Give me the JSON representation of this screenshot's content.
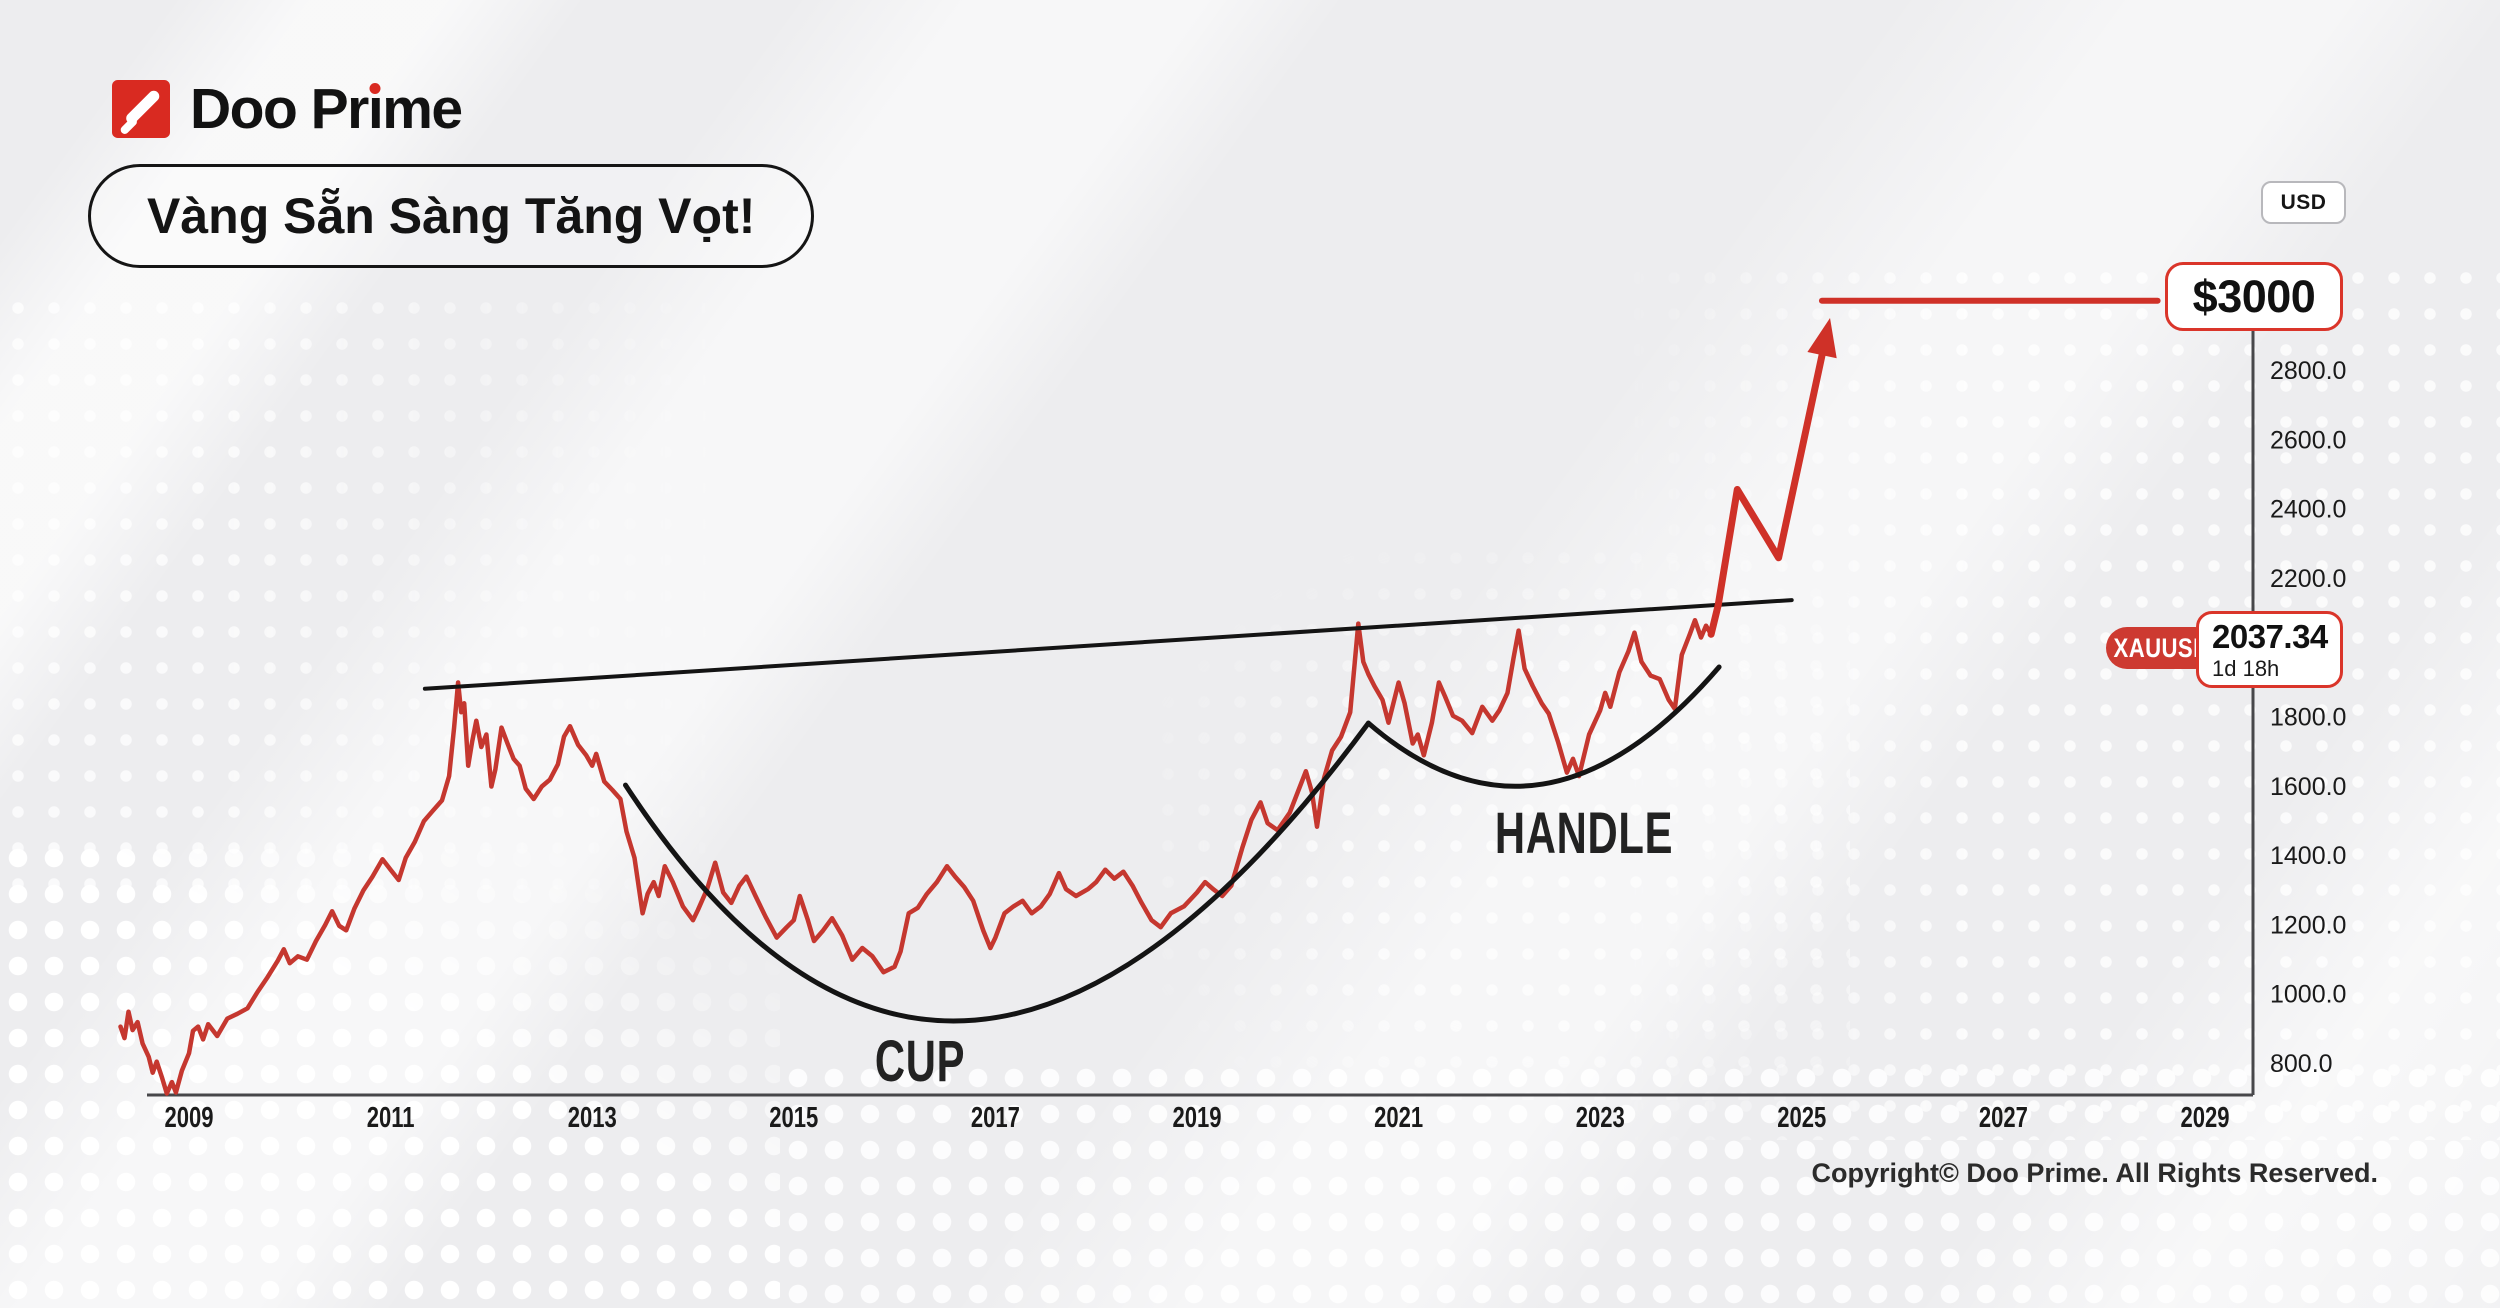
{
  "brand": {
    "logo_pre": "Doo Pr",
    "logo_i": "ı",
    "logo_post": "me"
  },
  "header": {
    "headline": "Vàng Sẵn Sàng Tăng Vọt!"
  },
  "currency_badge": {
    "label": "USD"
  },
  "target_badge": {
    "label": "$3000"
  },
  "price_tag": {
    "symbol": "XAUUSD",
    "price": "2037.34",
    "timeframe": "1d 18h"
  },
  "pattern_labels": {
    "cup": "CUP",
    "handle": "HANDLE"
  },
  "footer": {
    "copyright": "Copyright© Doo Prime. All Rights Reserved."
  },
  "colors": {
    "brand_red": "#d92a21",
    "line_red": "#c5372f",
    "projection_red": "#cf3128",
    "pill_red": "#cd3a31",
    "annotation_black": "#141414",
    "axis_gray": "#47474a"
  },
  "chart_data": {
    "type": "line",
    "title": "XAUUSD price history with cup-and-handle pattern and $3000 projection",
    "x_axis": {
      "ticks": [
        2009,
        2011,
        2013,
        2015,
        2017,
        2019,
        2021,
        2023,
        2025,
        2027,
        2029
      ],
      "range": [
        2008.1,
        2029.6
      ]
    },
    "y_axis": {
      "tick_values": [
        2800,
        2600,
        2400,
        2200,
        1800,
        1600,
        1400,
        1200,
        1000,
        800
      ],
      "tick_format": "one_decimal",
      "range": [
        700,
        3100
      ]
    },
    "last_price": 2037.34,
    "series": [
      {
        "name": "XAUUSD",
        "points": [
          [
            2008.32,
            905
          ],
          [
            2008.36,
            872
          ],
          [
            2008.4,
            948
          ],
          [
            2008.44,
            895
          ],
          [
            2008.49,
            918
          ],
          [
            2008.54,
            856
          ],
          [
            2008.6,
            818
          ],
          [
            2008.64,
            772
          ],
          [
            2008.68,
            804
          ],
          [
            2008.73,
            760
          ],
          [
            2008.78,
            712
          ],
          [
            2008.83,
            745
          ],
          [
            2008.87,
            715
          ],
          [
            2008.93,
            778
          ],
          [
            2009.0,
            828
          ],
          [
            2009.04,
            893
          ],
          [
            2009.09,
            905
          ],
          [
            2009.14,
            868
          ],
          [
            2009.19,
            912
          ],
          [
            2009.28,
            878
          ],
          [
            2009.38,
            928
          ],
          [
            2009.48,
            942
          ],
          [
            2009.58,
            958
          ],
          [
            2009.68,
            1005
          ],
          [
            2009.78,
            1048
          ],
          [
            2009.88,
            1095
          ],
          [
            2009.94,
            1128
          ],
          [
            2010.0,
            1088
          ],
          [
            2010.08,
            1108
          ],
          [
            2010.17,
            1098
          ],
          [
            2010.26,
            1152
          ],
          [
            2010.35,
            1198
          ],
          [
            2010.42,
            1238
          ],
          [
            2010.49,
            1196
          ],
          [
            2010.56,
            1183
          ],
          [
            2010.64,
            1245
          ],
          [
            2010.73,
            1298
          ],
          [
            2010.82,
            1338
          ],
          [
            2010.92,
            1388
          ],
          [
            2011.0,
            1358
          ],
          [
            2011.08,
            1328
          ],
          [
            2011.15,
            1392
          ],
          [
            2011.24,
            1438
          ],
          [
            2011.33,
            1498
          ],
          [
            2011.42,
            1528
          ],
          [
            2011.51,
            1558
          ],
          [
            2011.58,
            1628
          ],
          [
            2011.63,
            1768
          ],
          [
            2011.67,
            1898
          ],
          [
            2011.7,
            1812
          ],
          [
            2011.73,
            1838
          ],
          [
            2011.77,
            1658
          ],
          [
            2011.81,
            1728
          ],
          [
            2011.85,
            1788
          ],
          [
            2011.9,
            1712
          ],
          [
            2011.95,
            1748
          ],
          [
            2012.0,
            1598
          ],
          [
            2012.04,
            1648
          ],
          [
            2012.1,
            1768
          ],
          [
            2012.16,
            1722
          ],
          [
            2012.22,
            1678
          ],
          [
            2012.28,
            1658
          ],
          [
            2012.34,
            1592
          ],
          [
            2012.42,
            1562
          ],
          [
            2012.5,
            1598
          ],
          [
            2012.58,
            1618
          ],
          [
            2012.66,
            1662
          ],
          [
            2012.72,
            1742
          ],
          [
            2012.78,
            1772
          ],
          [
            2012.86,
            1718
          ],
          [
            2012.94,
            1688
          ],
          [
            2013.0,
            1658
          ],
          [
            2013.04,
            1692
          ],
          [
            2013.12,
            1612
          ],
          [
            2013.2,
            1588
          ],
          [
            2013.28,
            1562
          ],
          [
            2013.34,
            1468
          ],
          [
            2013.42,
            1392
          ],
          [
            2013.5,
            1232
          ],
          [
            2013.55,
            1288
          ],
          [
            2013.61,
            1322
          ],
          [
            2013.66,
            1282
          ],
          [
            2013.72,
            1368
          ],
          [
            2013.8,
            1322
          ],
          [
            2013.9,
            1252
          ],
          [
            2014.0,
            1212
          ],
          [
            2014.05,
            1242
          ],
          [
            2014.14,
            1302
          ],
          [
            2014.22,
            1378
          ],
          [
            2014.3,
            1292
          ],
          [
            2014.38,
            1262
          ],
          [
            2014.46,
            1312
          ],
          [
            2014.53,
            1338
          ],
          [
            2014.62,
            1282
          ],
          [
            2014.72,
            1222
          ],
          [
            2014.83,
            1162
          ],
          [
            2014.93,
            1192
          ],
          [
            2015.0,
            1212
          ],
          [
            2015.06,
            1282
          ],
          [
            2015.14,
            1212
          ],
          [
            2015.2,
            1152
          ],
          [
            2015.29,
            1182
          ],
          [
            2015.38,
            1218
          ],
          [
            2015.48,
            1168
          ],
          [
            2015.58,
            1098
          ],
          [
            2015.68,
            1132
          ],
          [
            2015.78,
            1108
          ],
          [
            2015.89,
            1062
          ],
          [
            2016.0,
            1078
          ],
          [
            2016.06,
            1122
          ],
          [
            2016.14,
            1232
          ],
          [
            2016.23,
            1248
          ],
          [
            2016.32,
            1288
          ],
          [
            2016.42,
            1322
          ],
          [
            2016.52,
            1368
          ],
          [
            2016.6,
            1338
          ],
          [
            2016.69,
            1308
          ],
          [
            2016.78,
            1268
          ],
          [
            2016.88,
            1182
          ],
          [
            2016.95,
            1132
          ],
          [
            2017.0,
            1162
          ],
          [
            2017.09,
            1232
          ],
          [
            2017.18,
            1252
          ],
          [
            2017.27,
            1268
          ],
          [
            2017.36,
            1232
          ],
          [
            2017.45,
            1252
          ],
          [
            2017.54,
            1288
          ],
          [
            2017.63,
            1348
          ],
          [
            2017.7,
            1302
          ],
          [
            2017.8,
            1282
          ],
          [
            2017.92,
            1302
          ],
          [
            2018.0,
            1322
          ],
          [
            2018.09,
            1358
          ],
          [
            2018.18,
            1332
          ],
          [
            2018.27,
            1352
          ],
          [
            2018.36,
            1312
          ],
          [
            2018.45,
            1262
          ],
          [
            2018.55,
            1212
          ],
          [
            2018.64,
            1192
          ],
          [
            2018.74,
            1232
          ],
          [
            2018.87,
            1252
          ],
          [
            2019.0,
            1292
          ],
          [
            2019.08,
            1322
          ],
          [
            2019.16,
            1302
          ],
          [
            2019.25,
            1282
          ],
          [
            2019.34,
            1312
          ],
          [
            2019.45,
            1422
          ],
          [
            2019.54,
            1502
          ],
          [
            2019.63,
            1552
          ],
          [
            2019.7,
            1492
          ],
          [
            2019.8,
            1472
          ],
          [
            2019.92,
            1522
          ],
          [
            2020.0,
            1582
          ],
          [
            2020.08,
            1642
          ],
          [
            2020.14,
            1582
          ],
          [
            2020.19,
            1482
          ],
          [
            2020.26,
            1622
          ],
          [
            2020.34,
            1702
          ],
          [
            2020.43,
            1742
          ],
          [
            2020.52,
            1812
          ],
          [
            2020.6,
            2068
          ],
          [
            2020.65,
            1958
          ],
          [
            2020.7,
            1922
          ],
          [
            2020.76,
            1888
          ],
          [
            2020.84,
            1848
          ],
          [
            2020.9,
            1782
          ],
          [
            2021.0,
            1898
          ],
          [
            2021.06,
            1838
          ],
          [
            2021.14,
            1722
          ],
          [
            2021.19,
            1748
          ],
          [
            2021.25,
            1688
          ],
          [
            2021.33,
            1782
          ],
          [
            2021.4,
            1898
          ],
          [
            2021.46,
            1858
          ],
          [
            2021.54,
            1802
          ],
          [
            2021.63,
            1788
          ],
          [
            2021.73,
            1752
          ],
          [
            2021.83,
            1828
          ],
          [
            2021.93,
            1788
          ],
          [
            2022.0,
            1818
          ],
          [
            2022.08,
            1868
          ],
          [
            2022.14,
            1968
          ],
          [
            2022.19,
            2048
          ],
          [
            2022.25,
            1938
          ],
          [
            2022.33,
            1888
          ],
          [
            2022.42,
            1838
          ],
          [
            2022.49,
            1808
          ],
          [
            2022.58,
            1728
          ],
          [
            2022.67,
            1638
          ],
          [
            2022.73,
            1678
          ],
          [
            2022.79,
            1628
          ],
          [
            2022.89,
            1748
          ],
          [
            2023.0,
            1818
          ],
          [
            2023.05,
            1868
          ],
          [
            2023.1,
            1828
          ],
          [
            2023.19,
            1928
          ],
          [
            2023.28,
            1988
          ],
          [
            2023.34,
            2042
          ],
          [
            2023.41,
            1958
          ],
          [
            2023.5,
            1918
          ],
          [
            2023.59,
            1908
          ],
          [
            2023.68,
            1848
          ],
          [
            2023.74,
            1822
          ],
          [
            2023.81,
            1978
          ],
          [
            2023.89,
            2038
          ],
          [
            2023.94,
            2078
          ],
          [
            2024.0,
            2028
          ],
          [
            2024.05,
            2062
          ],
          [
            2024.1,
            2037.34
          ]
        ]
      }
    ],
    "projection": {
      "name": "forecast",
      "points": [
        [
          2024.1,
          2037.34
        ],
        [
          2024.17,
          2120
        ],
        [
          2024.36,
          2455
        ],
        [
          2024.77,
          2258
        ],
        [
          2025.28,
          2950
        ]
      ]
    },
    "target_line": {
      "price": 3000,
      "x1_year": 2025.2,
      "x2_year": 2028.53
    },
    "trendline": {
      "start": [
        2011.34,
        1880
      ],
      "end": [
        2024.9,
        2136
      ]
    },
    "cup_arc": {
      "p0": [
        2013.33,
        1602
      ],
      "ctrl": [
        2016.58,
        156
      ],
      "p1": [
        2020.7,
        1781
      ]
    },
    "handle_arc": {
      "p0": [
        2020.7,
        1781
      ],
      "ctrl": [
        2022.42,
        1348
      ],
      "p1": [
        2024.18,
        1943
      ]
    }
  }
}
